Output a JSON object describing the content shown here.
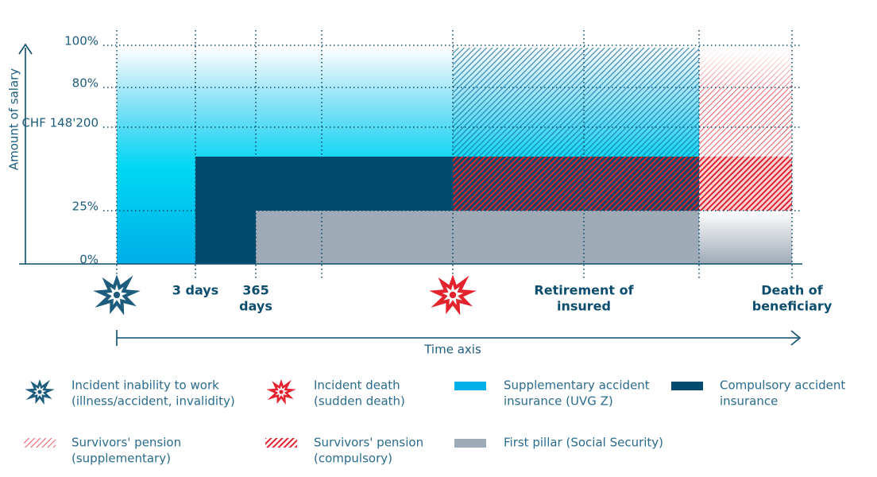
{
  "y_axis": {
    "title": "Amount of salary",
    "labels": [
      "100%",
      "80%",
      "CHF 148'200",
      "25%",
      "0%"
    ]
  },
  "x_axis": {
    "title": "Time axis",
    "labels": [
      [
        "3 days"
      ],
      [
        "365",
        "days"
      ],
      [
        "Retirement of",
        "insured"
      ],
      [
        "Death of",
        "beneficiary"
      ]
    ]
  },
  "legend": [
    {
      "lines": [
        "Incident inability to work",
        "(illness/accident, invalidity)"
      ]
    },
    {
      "lines": [
        "Incident death",
        "(sudden death)"
      ]
    },
    {
      "lines": [
        "Supplementary accident",
        "insurance (UVG Z)"
      ]
    },
    {
      "lines": [
        "Compulsory accident",
        "insurance"
      ]
    },
    {
      "lines": [
        "Survivors' pension",
        "(supplementary)"
      ]
    },
    {
      "lines": [
        "Survivors' pension",
        "(compulsory)"
      ]
    },
    {
      "lines": [
        "First pillar (Social Security)"
      ]
    }
  ]
}
